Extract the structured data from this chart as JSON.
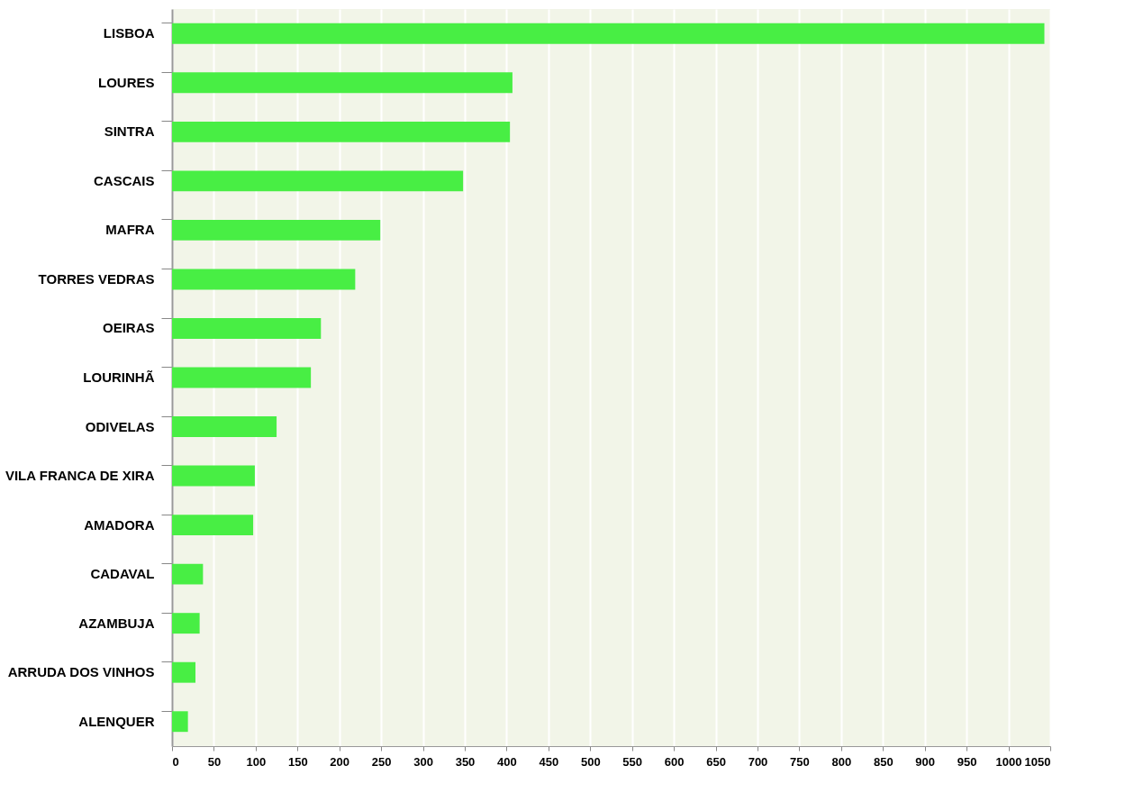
{
  "chart_data": {
    "type": "bar",
    "orientation": "horizontal",
    "categories": [
      "LISBOA",
      "LOURES",
      "SINTRA",
      "CASCAIS",
      "MAFRA",
      "TORRES VEDRAS",
      "OEIRAS",
      "LOURINHÃ",
      "ODIVELAS",
      "VILA FRANCA DE XIRA",
      "AMADORA",
      "CADAVAL",
      "AZAMBUJA",
      "ARRUDA DOS VINHOS",
      "ALENQUER"
    ],
    "values": [
      1043,
      407,
      404,
      348,
      249,
      219,
      178,
      166,
      125,
      99,
      97,
      37,
      33,
      28,
      19
    ],
    "color": "#48ee44",
    "xlim": [
      0,
      1050
    ],
    "xticks": [
      0,
      50,
      100,
      150,
      200,
      250,
      300,
      350,
      400,
      450,
      500,
      550,
      600,
      650,
      700,
      750,
      800,
      850,
      900,
      950,
      1000,
      1050
    ],
    "grid": "x"
  }
}
